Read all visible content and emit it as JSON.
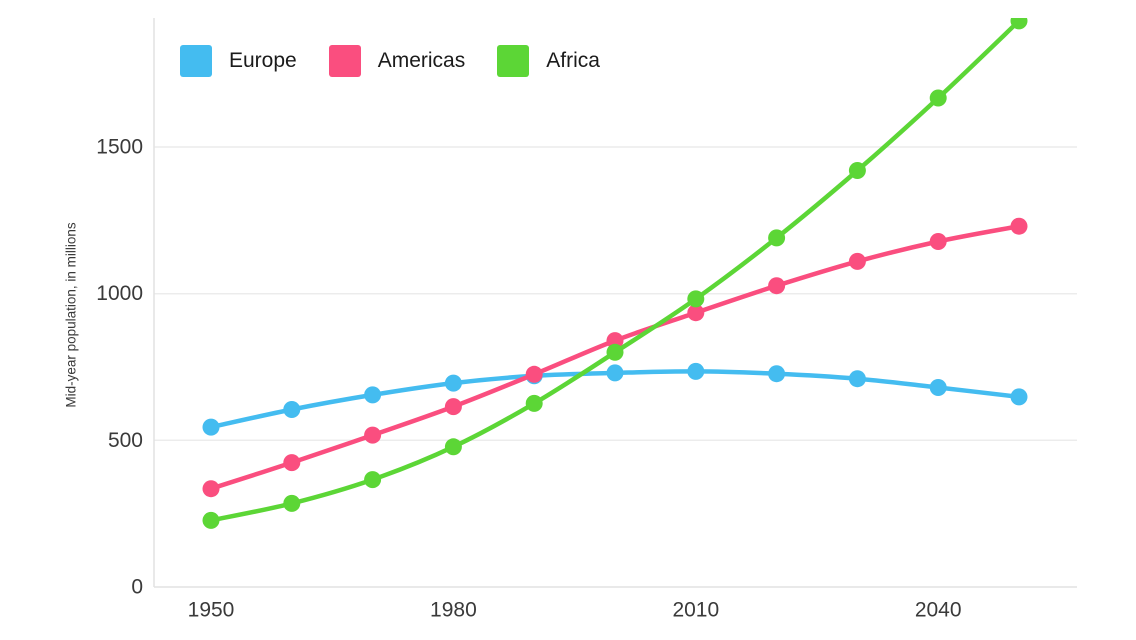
{
  "chart_data": {
    "type": "line",
    "title": "",
    "xlabel": "",
    "ylabel": "Mid-year population, in millions",
    "x": [
      1950,
      1960,
      1970,
      1980,
      1990,
      2000,
      2010,
      2020,
      2030,
      2040,
      2050
    ],
    "x_tick_labels": [
      "1950",
      "1980",
      "2010",
      "2040"
    ],
    "x_tick_years": [
      1950,
      1980,
      2010,
      2040
    ],
    "y_ticks": [
      0,
      500,
      1000,
      1500
    ],
    "y_tick_labels": [
      "0",
      "500",
      "1000",
      "1500"
    ],
    "ylim": [
      0,
      1940
    ],
    "xlim": [
      1943,
      2057
    ],
    "grid": "horizontal-only",
    "legend_position": "top-left",
    "marker": "circle",
    "series": [
      {
        "name": "Europe",
        "color": "#44BCF0",
        "values": [
          545,
          605,
          655,
          695,
          720,
          730,
          735,
          727,
          710,
          680,
          648
        ]
      },
      {
        "name": "Americas",
        "color": "#FA4E7F",
        "values": [
          335,
          424,
          518,
          615,
          725,
          840,
          935,
          1027,
          1110,
          1178,
          1230
        ]
      },
      {
        "name": "Africa",
        "color": "#5CD636",
        "values": [
          227,
          285,
          366,
          478,
          626,
          800,
          982,
          1190,
          1420,
          1667,
          1930
        ]
      }
    ]
  },
  "colors": {
    "background": "#ffffff",
    "gridline": "#ececec",
    "axis_line": "#e2e2e2",
    "tick_text": "#3a3a3a",
    "legend_text": "#1b1b1b"
  }
}
